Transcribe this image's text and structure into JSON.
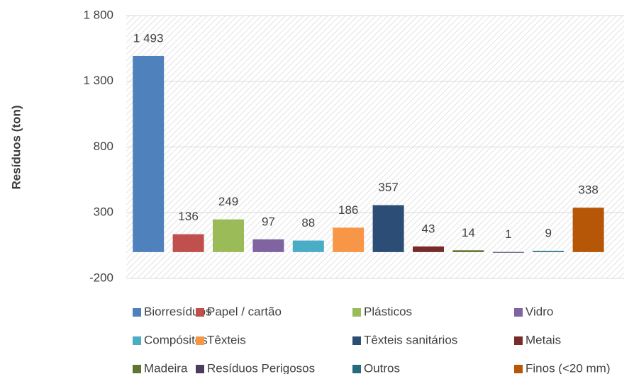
{
  "chart_data": {
    "type": "bar",
    "y_label": "Resíduos (ton)",
    "categories": [
      "Biorresíduos",
      "Papel / cartão",
      "Plásticos",
      "Vidro",
      "Compósitos",
      "Têxteis",
      "Têxteis sanitários",
      "Metais",
      "Madeira",
      "Resíduos Perigosos",
      "Outros",
      "Finos (<20 mm)"
    ],
    "values": [
      1493,
      136,
      249,
      97,
      88,
      186,
      357,
      43,
      14,
      1,
      9,
      338
    ],
    "value_labels": [
      "1 493",
      "136",
      "249",
      "97",
      "88",
      "186",
      "357",
      "43",
      "14",
      "1",
      "9",
      "338"
    ],
    "colors": [
      "#4f81bd",
      "#c0504d",
      "#9bbb59",
      "#8064a2",
      "#4bacc6",
      "#f79646",
      "#2c4d75",
      "#772c2a",
      "#5f7530",
      "#4d3b62",
      "#276a7c",
      "#b65708"
    ],
    "ylim": [
      -200,
      1800
    ],
    "yticks": [
      -200,
      300,
      800,
      {
        "value": 1300,
        "label": "1 300"
      },
      {
        "value": 1800,
        "label": "1 800"
      }
    ],
    "grid": true,
    "legend": "bottom"
  }
}
